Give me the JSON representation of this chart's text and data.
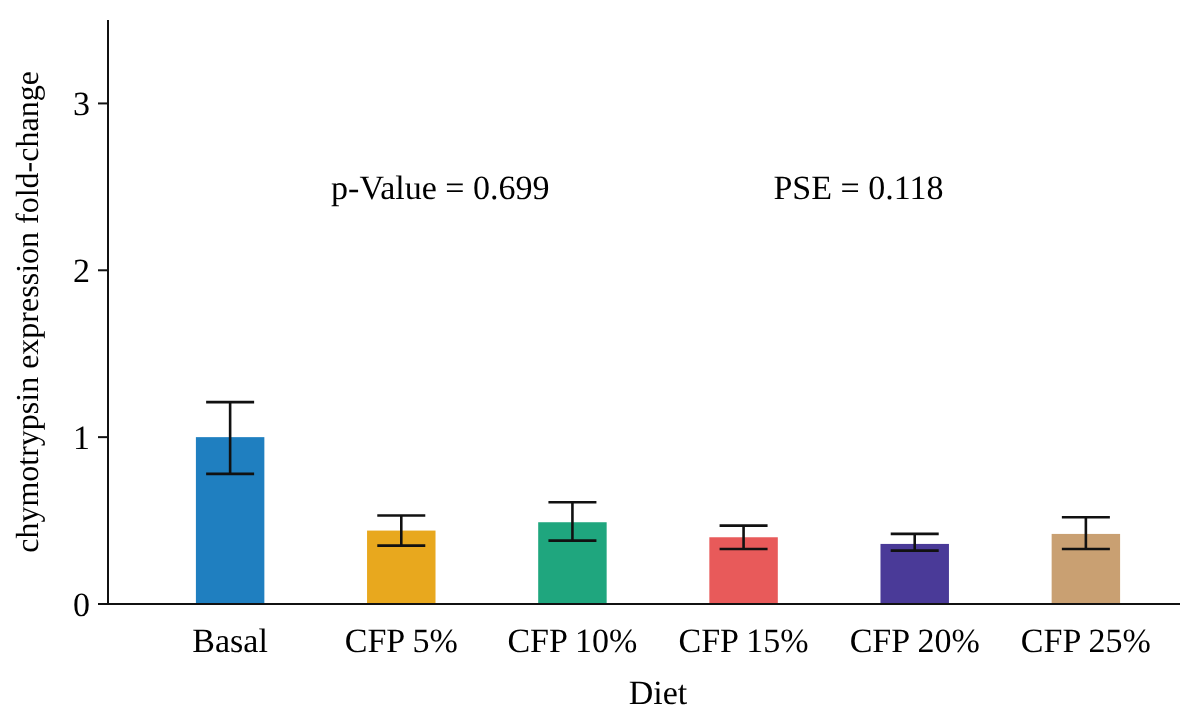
{
  "chart_data": {
    "type": "bar",
    "xlabel": "Diet",
    "ylabel": "chymotrypsin expression fold-change",
    "categories": [
      "Basal",
      "CFP 5%",
      "CFP 10%",
      "CFP 15%",
      "CFP 20%",
      "CFP 25%"
    ],
    "values": [
      1.0,
      0.44,
      0.49,
      0.4,
      0.36,
      0.42
    ],
    "errors": [
      [
        0.78,
        1.21
      ],
      [
        0.35,
        0.53
      ],
      [
        0.38,
        0.61
      ],
      [
        0.33,
        0.47
      ],
      [
        0.32,
        0.42
      ],
      [
        0.33,
        0.52
      ]
    ],
    "colors": [
      "#1f7fc0",
      "#e8a81e",
      "#1fa67e",
      "#e85a5a",
      "#4a3a98",
      "#c9a072"
    ],
    "ylim": [
      0,
      3.5
    ],
    "yticks": [
      0,
      1,
      2,
      3
    ],
    "annotations": [
      "p-Value = 0.699",
      "PSE = 0.118"
    ],
    "grid": false
  }
}
